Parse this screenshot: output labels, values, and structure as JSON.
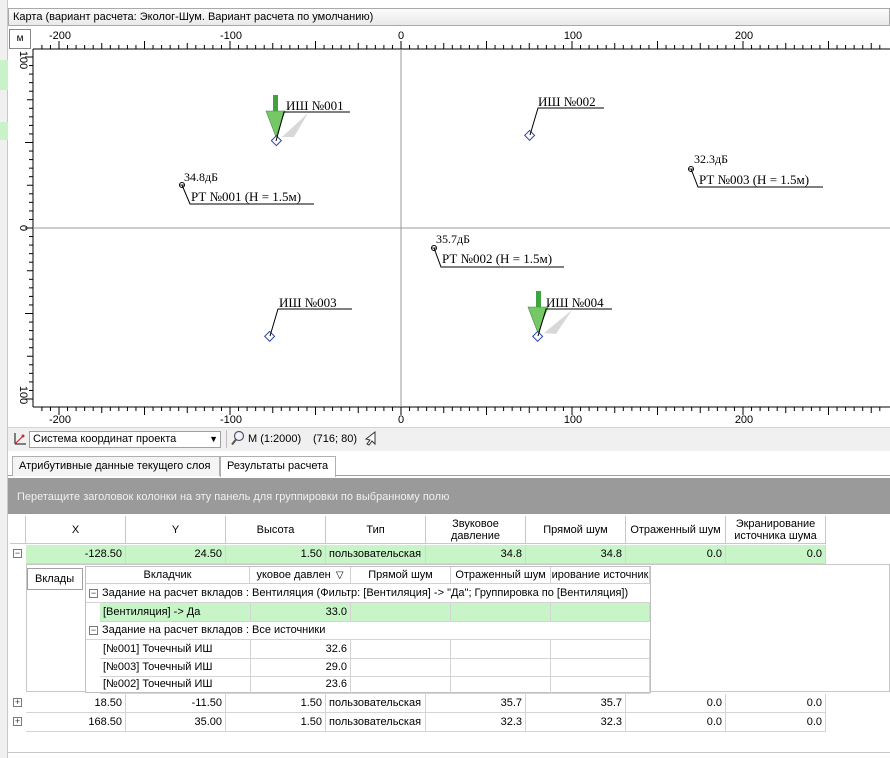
{
  "window": {
    "title": "Карта (вариант расчета: Эколог-Шум. Вариант расчета по умолчанию)"
  },
  "map": {
    "unit_label": "м",
    "top_ruler_labels": [
      "-200",
      "-100",
      "0",
      "100",
      "200"
    ],
    "bottom_ruler_labels": [
      "-200",
      "-100",
      "0",
      "100",
      "200"
    ],
    "left_ruler_labels": [
      "100",
      "0",
      "100"
    ],
    "noise_sources": [
      {
        "label": "ИШ №001",
        "has_arrow": true
      },
      {
        "label": "ИШ №002",
        "has_arrow": false
      },
      {
        "label": "ИШ №003",
        "has_arrow": false
      },
      {
        "label": "ИШ №004",
        "has_arrow": true
      }
    ],
    "calc_points": [
      {
        "level": "34.8дБ",
        "label": "РТ №001 (H = 1.5м)"
      },
      {
        "level": "35.7дБ",
        "label": "РТ №002 (H = 1.5м)"
      },
      {
        "level": "32.3дБ",
        "label": "РТ №003 (H = 1.5м)"
      }
    ]
  },
  "toolbar": {
    "coord_system": "Система координат проекта",
    "scale": "М (1:2000)",
    "cursor_coords": "(716; 80)"
  },
  "tabs": [
    {
      "label": "Атрибутивные данные текущего слоя",
      "active": false
    },
    {
      "label": "Результаты расчета",
      "active": true
    }
  ],
  "group_panel_text": "Перетащите заголовок колонки на эту панель для группировки по выбранному полю",
  "grid": {
    "columns": [
      "X",
      "Y",
      "Высота",
      "Тип",
      "Звуковое давление",
      "Прямой шум",
      "Отраженный шум",
      "Экранирование источника шума"
    ],
    "rows": [
      {
        "expander": "−",
        "x": "-128.50",
        "y": "24.50",
        "height": "1.50",
        "type": "пользовательская",
        "pressure": "34.8",
        "direct": "34.8",
        "reflected": "0.0",
        "screening": "0.0"
      },
      {
        "expander": "+",
        "x": "18.50",
        "y": "-11.50",
        "height": "1.50",
        "type": "пользовательская",
        "pressure": "35.7",
        "direct": "35.7",
        "reflected": "0.0",
        "screening": "0.0"
      },
      {
        "expander": "+",
        "x": "168.50",
        "y": "35.00",
        "height": "1.50",
        "type": "пользовательская",
        "pressure": "32.3",
        "direct": "32.3",
        "reflected": "0.0",
        "screening": "0.0"
      }
    ]
  },
  "detail": {
    "tab_label": "Вклады",
    "columns": [
      "Вкладчик",
      "уковое давлен",
      "Прямой шум",
      "Отраженный шум",
      "ирование источник"
    ],
    "sort_glyph": "▽",
    "groups": [
      {
        "title": "Задание на расчет вкладов : Вентиляция (Фильтр: [Вентиляция] -> \"Да\"; Группировка по [Вентиляция])",
        "rows": [
          {
            "name": "[Вентиляция] -> Да",
            "value": "33.0"
          }
        ]
      },
      {
        "title": "Задание на расчет вкладов : Все источники",
        "rows": [
          {
            "name": "[№001] Точечный ИШ",
            "value": "32.6"
          },
          {
            "name": "[№003] Точечный ИШ",
            "value": "29.0"
          },
          {
            "name": "[№002] Точечный ИШ",
            "value": "23.6"
          }
        ]
      }
    ]
  },
  "colors": {
    "selected_row": "#c8f5c8",
    "group_panel": "#9a9a9a",
    "arrow_green": "#3fa33f",
    "source_diamond": "#2b3fb0"
  }
}
